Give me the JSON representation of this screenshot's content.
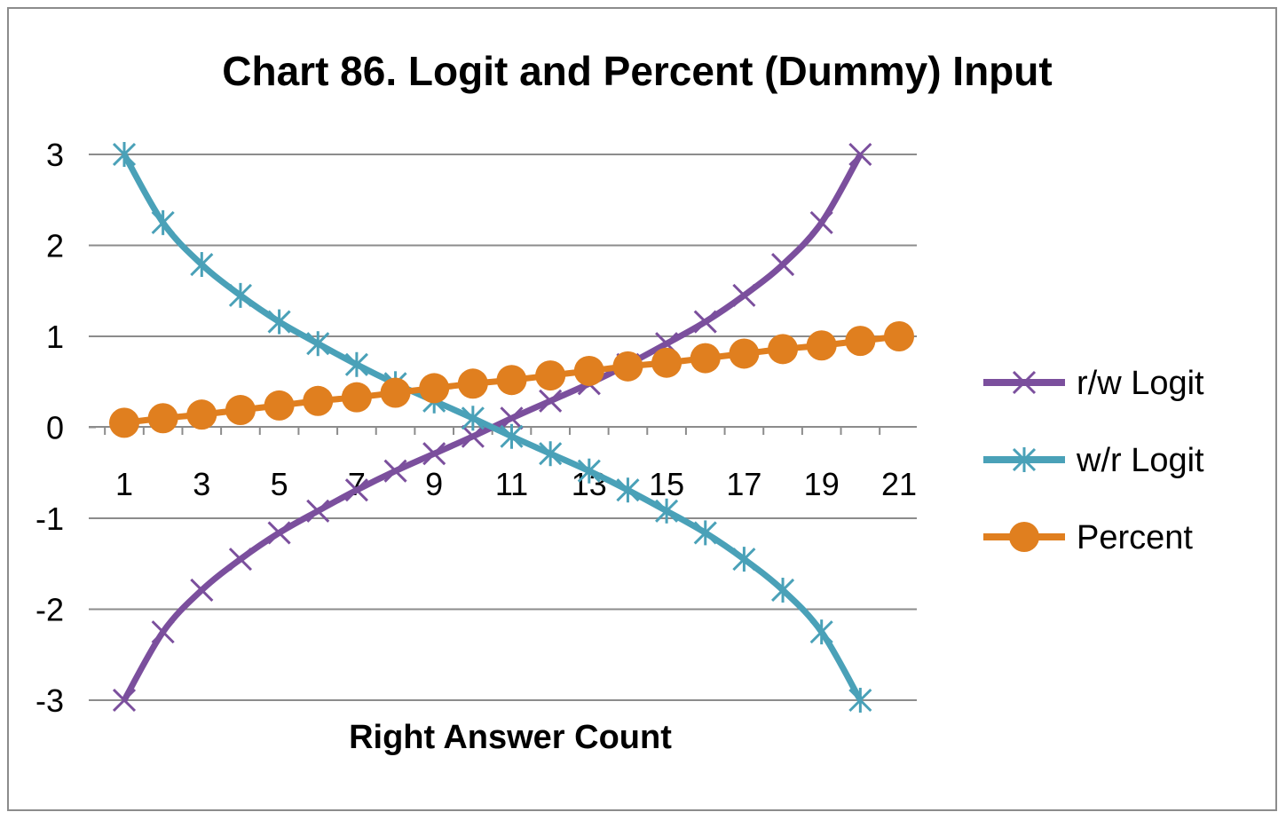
{
  "chart_data": {
    "type": "line",
    "title": "Chart 86. Logit and Percent (Dummy) Input",
    "xlabel": "Right Answer Count",
    "ylabel": "",
    "ylim": [
      -3,
      3
    ],
    "yticks": [
      "3",
      "2",
      "1",
      "0",
      "-1",
      "-2",
      "-3"
    ],
    "ytick_values": [
      3,
      2,
      1,
      0,
      -1,
      -2,
      -3
    ],
    "xticks": [
      "1",
      "3",
      "5",
      "7",
      "9",
      "11",
      "13",
      "15",
      "17",
      "19",
      "21"
    ],
    "xtick_values": [
      1,
      3,
      5,
      7,
      9,
      11,
      13,
      15,
      17,
      19,
      21
    ],
    "x": [
      1,
      2,
      3,
      4,
      5,
      6,
      7,
      8,
      9,
      10,
      11,
      12,
      13,
      14,
      15,
      16,
      17,
      18,
      19,
      20,
      21
    ],
    "grid": true,
    "legend_position": "right",
    "series": [
      {
        "name": "r/w Logit",
        "color": "#7b4f9d",
        "marker": "x",
        "x": [
          1,
          2,
          3,
          4,
          5,
          6,
          7,
          8,
          9,
          10,
          11,
          12,
          13,
          14,
          15,
          16,
          17,
          18,
          19,
          20
        ],
        "values": [
          -3.0,
          -2.25,
          -1.79,
          -1.45,
          -1.16,
          -0.92,
          -0.69,
          -0.48,
          -0.29,
          -0.1,
          0.1,
          0.29,
          0.48,
          0.69,
          0.92,
          1.16,
          1.45,
          1.79,
          2.25,
          3.0
        ]
      },
      {
        "name": "w/r Logit",
        "color": "#4aa1b8",
        "marker": "asterisk",
        "x": [
          1,
          2,
          3,
          4,
          5,
          6,
          7,
          8,
          9,
          10,
          11,
          12,
          13,
          14,
          15,
          16,
          17,
          18,
          19,
          20
        ],
        "values": [
          3.0,
          2.25,
          1.79,
          1.45,
          1.16,
          0.92,
          0.69,
          0.48,
          0.29,
          0.1,
          -0.1,
          -0.29,
          -0.48,
          -0.69,
          -0.92,
          -1.16,
          -1.45,
          -1.79,
          -2.25,
          -3.0
        ]
      },
      {
        "name": "Percent",
        "color": "#e07f1f",
        "marker": "circle",
        "x": [
          1,
          2,
          3,
          4,
          5,
          6,
          7,
          8,
          9,
          10,
          11,
          12,
          13,
          14,
          15,
          16,
          17,
          18,
          19,
          20,
          21
        ],
        "values": [
          0.05,
          0.1,
          0.14,
          0.19,
          0.24,
          0.29,
          0.33,
          0.38,
          0.43,
          0.48,
          0.52,
          0.57,
          0.62,
          0.67,
          0.71,
          0.76,
          0.81,
          0.86,
          0.9,
          0.95,
          1.0
        ]
      }
    ]
  }
}
